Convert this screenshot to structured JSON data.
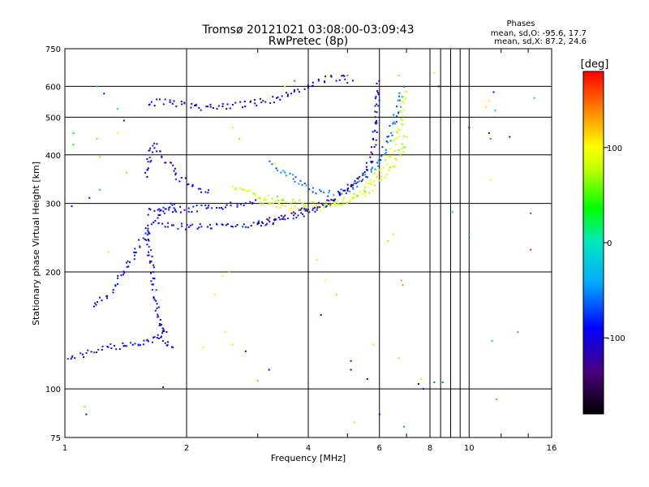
{
  "chart_data": {
    "type": "scatter",
    "title": "Tromsø 20121021 03:08:00-03:09:43",
    "subtitle": "RwPretec (8p)",
    "xlabel": "Frequency [MHz]",
    "ylabel": "Stationary phase Virtual Height [km]",
    "x_scale": "log",
    "y_scale": "log",
    "xlim": [
      1,
      16
    ],
    "ylim": [
      75,
      750
    ],
    "x_ticks": [
      1,
      2,
      4,
      6,
      8,
      10,
      16
    ],
    "x_tick_labels": [
      "1",
      "2",
      "4",
      "6",
      "8",
      "10",
      "16"
    ],
    "y_ticks": [
      75,
      100,
      200,
      300,
      400,
      500,
      600,
      750
    ],
    "y_tick_labels": [
      "75",
      "100",
      "200",
      "300",
      "400",
      "500",
      "600",
      "750"
    ],
    "grid": true,
    "phases_info": {
      "heading": "Phases",
      "line_o": "mean, sd,O: -95.6, 17.7",
      "line_x": "mean, sd,X:  87.2, 24.6"
    },
    "colorbar": {
      "label": "[deg]",
      "range": [
        -180,
        180
      ],
      "ticks": [
        100,
        0,
        -100
      ],
      "tick_labels": [
        "100",
        "0",
        "-100"
      ]
    },
    "traces": [
      {
        "name": "",
        "phase": -95,
        "points": [
          [
            1.0,
            120
          ],
          [
            1.05,
            121
          ],
          [
            1.1,
            122
          ],
          [
            1.15,
            124
          ],
          [
            1.2,
            126
          ],
          [
            1.25,
            127
          ],
          [
            1.3,
            128
          ],
          [
            1.35,
            128
          ],
          [
            1.4,
            129
          ],
          [
            1.45,
            129
          ],
          [
            1.5,
            130
          ],
          [
            1.55,
            131
          ],
          [
            1.6,
            133
          ],
          [
            1.65,
            135
          ],
          [
            1.7,
            137
          ],
          [
            1.75,
            140
          ],
          [
            1.8,
            144
          ]
        ]
      },
      {
        "name": "",
        "phase": -95,
        "points": [
          [
            1.18,
            165
          ],
          [
            1.22,
            168
          ],
          [
            1.26,
            172
          ],
          [
            1.3,
            178
          ],
          [
            1.34,
            185
          ],
          [
            1.38,
            195
          ],
          [
            1.42,
            205
          ],
          [
            1.46,
            215
          ],
          [
            1.5,
            228
          ],
          [
            1.55,
            242
          ],
          [
            1.6,
            255
          ],
          [
            1.65,
            268
          ],
          [
            1.7,
            278
          ],
          [
            1.75,
            286
          ],
          [
            1.8,
            292
          ],
          [
            1.85,
            296
          ],
          [
            1.9,
            298
          ]
        ]
      },
      {
        "name": "",
        "phase": -95,
        "points": [
          [
            1.6,
            260
          ],
          [
            1.62,
            230
          ],
          [
            1.64,
            205
          ],
          [
            1.66,
            185
          ],
          [
            1.68,
            168
          ],
          [
            1.7,
            155
          ],
          [
            1.72,
            145
          ],
          [
            1.74,
            138
          ],
          [
            1.76,
            132
          ],
          [
            1.8,
            129
          ],
          [
            1.85,
            127
          ]
        ]
      },
      {
        "name": "",
        "phase": -95,
        "points": [
          [
            1.7,
            262
          ],
          [
            1.9,
            262
          ],
          [
            2.0,
            261
          ],
          [
            2.2,
            262
          ],
          [
            2.5,
            263
          ],
          [
            2.8,
            265
          ],
          [
            3.0,
            267
          ],
          [
            3.3,
            270
          ],
          [
            3.6,
            276
          ],
          [
            3.9,
            283
          ],
          [
            4.2,
            292
          ],
          [
            4.5,
            302
          ],
          [
            4.8,
            315
          ],
          [
            5.1,
            330
          ],
          [
            5.4,
            348
          ],
          [
            5.6,
            370
          ],
          [
            5.8,
            400
          ],
          [
            5.85,
            450
          ],
          [
            5.9,
            520
          ],
          [
            5.95,
            620
          ]
        ]
      },
      {
        "name": "",
        "phase": -95,
        "points": [
          [
            1.6,
            285
          ],
          [
            1.8,
            288
          ],
          [
            2.0,
            290
          ],
          [
            2.2,
            292
          ],
          [
            2.5,
            295
          ],
          [
            2.8,
            300
          ],
          [
            3.0,
            305
          ]
        ]
      },
      {
        "name": "",
        "phase": -100,
        "points": [
          [
            1.6,
            540
          ],
          [
            1.7,
            545
          ],
          [
            1.8,
            548
          ],
          [
            1.9,
            540
          ],
          [
            2.0,
            535
          ],
          [
            2.1,
            530
          ],
          [
            2.3,
            532
          ],
          [
            2.5,
            535
          ],
          [
            2.8,
            540
          ],
          [
            3.0,
            545
          ],
          [
            3.3,
            555
          ],
          [
            3.6,
            575
          ],
          [
            4.0,
            600
          ],
          [
            4.4,
            625
          ],
          [
            4.8,
            630
          ],
          [
            5.2,
            620
          ]
        ]
      },
      {
        "name": "",
        "phase": -95,
        "points": [
          [
            1.6,
            350
          ],
          [
            1.62,
            400
          ],
          [
            1.64,
            430
          ],
          [
            1.8,
            380
          ],
          [
            1.9,
            350
          ],
          [
            2.1,
            330
          ],
          [
            2.3,
            320
          ]
        ]
      },
      {
        "name": "",
        "phase": 87,
        "points": [
          [
            3.0,
            305
          ],
          [
            3.2,
            300
          ],
          [
            3.4,
            295
          ],
          [
            3.7,
            292
          ],
          [
            4.0,
            290
          ],
          [
            4.3,
            292
          ],
          [
            4.6,
            297
          ],
          [
            4.9,
            303
          ],
          [
            5.2,
            312
          ],
          [
            5.5,
            325
          ],
          [
            5.8,
            345
          ],
          [
            6.1,
            370
          ],
          [
            6.4,
            400
          ],
          [
            6.6,
            440
          ],
          [
            6.8,
            490
          ],
          [
            6.9,
            540
          ],
          [
            6.95,
            600
          ]
        ]
      },
      {
        "name": "",
        "phase": 80,
        "points": [
          [
            2.6,
            330
          ],
          [
            2.8,
            320
          ],
          [
            3.0,
            315
          ],
          [
            3.2,
            310
          ],
          [
            3.5,
            305
          ],
          [
            3.8,
            300
          ],
          [
            4.2,
            298
          ],
          [
            4.6,
            300
          ],
          [
            5.0,
            305
          ],
          [
            5.4,
            315
          ],
          [
            5.8,
            330
          ],
          [
            6.2,
            350
          ],
          [
            6.5,
            375
          ],
          [
            6.8,
            410
          ],
          [
            7.0,
            450
          ]
        ]
      },
      {
        "name": "",
        "phase": -60,
        "points": [
          [
            3.2,
            380
          ],
          [
            3.5,
            360
          ],
          [
            3.8,
            340
          ],
          [
            4.1,
            325
          ],
          [
            4.5,
            318
          ],
          [
            4.9,
            322
          ],
          [
            5.3,
            335
          ],
          [
            5.7,
            360
          ],
          [
            6.0,
            390
          ],
          [
            6.3,
            430
          ],
          [
            6.5,
            480
          ],
          [
            6.7,
            540
          ],
          [
            6.85,
            600
          ]
        ]
      },
      {
        "name": "",
        "phase": -130,
        "points": [
          [
            3.0,
            270
          ],
          [
            3.3,
            273
          ],
          [
            3.6,
            279
          ],
          [
            3.9,
            286
          ],
          [
            4.2,
            295
          ],
          [
            4.5,
            305
          ],
          [
            4.8,
            318
          ],
          [
            5.1,
            333
          ],
          [
            5.4,
            352
          ]
        ]
      }
    ],
    "scatter_points": [
      {
        "x": 1.2,
        "y": 600,
        "phase": 20
      },
      {
        "x": 1.25,
        "y": 575,
        "phase": -100
      },
      {
        "x": 1.4,
        "y": 490,
        "phase": -95
      },
      {
        "x": 1.35,
        "y": 525,
        "phase": -10
      },
      {
        "x": 1.05,
        "y": 455,
        "phase": 40
      },
      {
        "x": 1.05,
        "y": 425,
        "phase": 30
      },
      {
        "x": 1.2,
        "y": 440,
        "phase": 60
      },
      {
        "x": 1.22,
        "y": 395,
        "phase": 60
      },
      {
        "x": 1.35,
        "y": 455,
        "phase": 100
      },
      {
        "x": 1.42,
        "y": 360,
        "phase": 120
      },
      {
        "x": 1.22,
        "y": 325,
        "phase": 30
      },
      {
        "x": 1.04,
        "y": 295,
        "phase": -100
      },
      {
        "x": 1.15,
        "y": 310,
        "phase": -95
      },
      {
        "x": 1.28,
        "y": 225,
        "phase": 110
      },
      {
        "x": 1.12,
        "y": 90,
        "phase": 60
      },
      {
        "x": 1.13,
        "y": 86,
        "phase": -100
      },
      {
        "x": 1.75,
        "y": 101,
        "phase": -90
      },
      {
        "x": 2.35,
        "y": 175,
        "phase": 110
      },
      {
        "x": 2.45,
        "y": 195,
        "phase": 100
      },
      {
        "x": 2.55,
        "y": 200,
        "phase": 120
      },
      {
        "x": 2.5,
        "y": 140,
        "phase": 110
      },
      {
        "x": 2.6,
        "y": 130,
        "phase": 110
      },
      {
        "x": 2.2,
        "y": 128,
        "phase": 100
      },
      {
        "x": 2.8,
        "y": 125,
        "phase": -90
      },
      {
        "x": 3.0,
        "y": 105,
        "phase": 60
      },
      {
        "x": 3.2,
        "y": 112,
        "phase": -90
      },
      {
        "x": 4.2,
        "y": 215,
        "phase": 110
      },
      {
        "x": 4.4,
        "y": 190,
        "phase": 100
      },
      {
        "x": 4.7,
        "y": 175,
        "phase": 120
      },
      {
        "x": 4.3,
        "y": 155,
        "phase": -90
      },
      {
        "x": 5.1,
        "y": 118,
        "phase": -100
      },
      {
        "x": 5.1,
        "y": 112,
        "phase": -95
      },
      {
        "x": 5.6,
        "y": 106,
        "phase": -90
      },
      {
        "x": 5.8,
        "y": 130,
        "phase": 110
      },
      {
        "x": 5.2,
        "y": 82,
        "phase": 120
      },
      {
        "x": 6.0,
        "y": 86,
        "phase": -90
      },
      {
        "x": 6.8,
        "y": 190,
        "phase": 130
      },
      {
        "x": 6.85,
        "y": 185,
        "phase": 140
      },
      {
        "x": 6.7,
        "y": 120,
        "phase": 120
      },
      {
        "x": 6.9,
        "y": 80,
        "phase": -40
      },
      {
        "x": 7.5,
        "y": 103,
        "phase": -100
      },
      {
        "x": 7.6,
        "y": 106,
        "phase": 110
      },
      {
        "x": 7.7,
        "y": 100,
        "phase": -95
      },
      {
        "x": 8.2,
        "y": 104,
        "phase": -60
      },
      {
        "x": 8.6,
        "y": 104,
        "phase": -60
      },
      {
        "x": 8.2,
        "y": 650,
        "phase": 110
      },
      {
        "x": 8.4,
        "y": 600,
        "phase": -100
      },
      {
        "x": 9.1,
        "y": 285,
        "phase": -10
      },
      {
        "x": 10.0,
        "y": 250,
        "phase": -40
      },
      {
        "x": 10.0,
        "y": 470,
        "phase": -90
      },
      {
        "x": 11.0,
        "y": 530,
        "phase": 110
      },
      {
        "x": 11.2,
        "y": 550,
        "phase": 110
      },
      {
        "x": 11.5,
        "y": 580,
        "phase": -100
      },
      {
        "x": 11.6,
        "y": 520,
        "phase": -20
      },
      {
        "x": 11.2,
        "y": 455,
        "phase": -130
      },
      {
        "x": 11.3,
        "y": 440,
        "phase": 160
      },
      {
        "x": 12.6,
        "y": 445,
        "phase": -120
      },
      {
        "x": 11.3,
        "y": 345,
        "phase": 100
      },
      {
        "x": 11.4,
        "y": 133,
        "phase": -20
      },
      {
        "x": 11.7,
        "y": 94,
        "phase": 140
      },
      {
        "x": 13.2,
        "y": 140,
        "phase": 150
      },
      {
        "x": 14.2,
        "y": 228,
        "phase": 170
      },
      {
        "x": 14.2,
        "y": 283,
        "phase": -60
      },
      {
        "x": 14.5,
        "y": 560,
        "phase": 30
      },
      {
        "x": 6.7,
        "y": 640,
        "phase": 120
      },
      {
        "x": 5.0,
        "y": 640,
        "phase": 150
      },
      {
        "x": 4.4,
        "y": 630,
        "phase": 100
      },
      {
        "x": 3.5,
        "y": 600,
        "phase": 100
      },
      {
        "x": 3.7,
        "y": 620,
        "phase": 160
      },
      {
        "x": 2.6,
        "y": 470,
        "phase": 110
      },
      {
        "x": 2.7,
        "y": 440,
        "phase": 120
      },
      {
        "x": 3.3,
        "y": 380,
        "phase": 100
      },
      {
        "x": 6.3,
        "y": 240,
        "phase": 120
      },
      {
        "x": 6.5,
        "y": 250,
        "phase": 110
      }
    ]
  }
}
